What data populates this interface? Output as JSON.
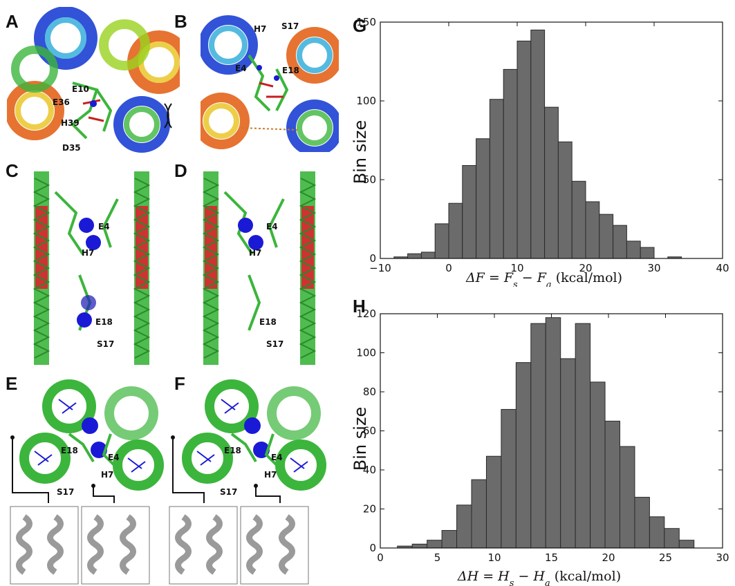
{
  "panels": {
    "A": "A",
    "B": "B",
    "C": "C",
    "D": "D",
    "E": "E",
    "F": "F",
    "G": "G",
    "H": "H"
  },
  "residue_labels": {
    "A": [
      "E10",
      "E36",
      "H39",
      "D35"
    ],
    "B": [
      "H7",
      "S17",
      "E4",
      "E18"
    ],
    "C": [
      "E4",
      "H7",
      "E18",
      "S17"
    ],
    "D": [
      "E4",
      "H7",
      "E18",
      "S17"
    ],
    "E": [
      "E18",
      "E4",
      "H7",
      "S17"
    ],
    "F": [
      "E18",
      "E4",
      "H7",
      "S17"
    ]
  },
  "colors": {
    "bar_fill": "#6b6b6b",
    "bar_edge": "#2a2a2a",
    "helix_green": "#3cb53c",
    "helix_red": "#c81e1e",
    "ion_blue": "#1a1ad6"
  },
  "chart_data": [
    {
      "type": "bar",
      "panel": "G",
      "bin_edges": [
        -8,
        -6,
        -4,
        -2,
        0,
        2,
        4,
        6,
        8,
        10,
        12,
        14,
        16,
        18,
        20,
        22,
        24,
        26,
        28,
        30,
        32,
        34
      ],
      "values": [
        1,
        3,
        4,
        22,
        35,
        59,
        76,
        101,
        120,
        138,
        145,
        96,
        74,
        49,
        36,
        28,
        21,
        11,
        7,
        0,
        1
      ],
      "xlabel": "ΔF = F_s − F_a  (kcal/mol)",
      "ylabel": "Bin size",
      "xlim": [
        -10,
        40
      ],
      "ylim": [
        0,
        150
      ],
      "xticks": [
        -10,
        0,
        10,
        20,
        30,
        40
      ],
      "yticks": [
        0,
        50,
        100,
        150
      ],
      "xtick_labels": [
        "−10",
        "0",
        "10",
        "20",
        "30",
        "40"
      ],
      "ytick_labels": [
        "0",
        "50",
        "100",
        "150"
      ],
      "xlabel_parts": [
        "ΔF = F",
        "s",
        " − F",
        "a",
        "  (kcal/mol)"
      ]
    },
    {
      "type": "bar",
      "panel": "H",
      "bin_edges": [
        1.5,
        2.8,
        4.1,
        5.4,
        6.7,
        8.0,
        9.3,
        10.6,
        11.9,
        13.2,
        14.5,
        15.8,
        17.1,
        18.4,
        19.7,
        21.0,
        22.3,
        23.6,
        24.9,
        26.2,
        27.5,
        28.8
      ],
      "values": [
        1,
        2,
        4,
        9,
        22,
        35,
        47,
        71,
        95,
        115,
        118,
        97,
        115,
        85,
        65,
        52,
        26,
        16,
        10,
        4,
        0
      ],
      "xlabel": "ΔH = H_s − H_a  (kcal/mol)",
      "ylabel": "Bin size",
      "xlim": [
        0,
        30
      ],
      "ylim": [
        0,
        120
      ],
      "xticks": [
        0,
        5,
        10,
        15,
        20,
        25,
        30
      ],
      "yticks": [
        0,
        20,
        40,
        60,
        80,
        100,
        120
      ],
      "xtick_labels": [
        "0",
        "5",
        "10",
        "15",
        "20",
        "25",
        "30"
      ],
      "ytick_labels": [
        "0",
        "20",
        "40",
        "60",
        "80",
        "100",
        "120"
      ],
      "xlabel_parts": [
        "ΔH = H",
        "s",
        " − H",
        "a",
        "  (kcal/mol)"
      ]
    }
  ]
}
